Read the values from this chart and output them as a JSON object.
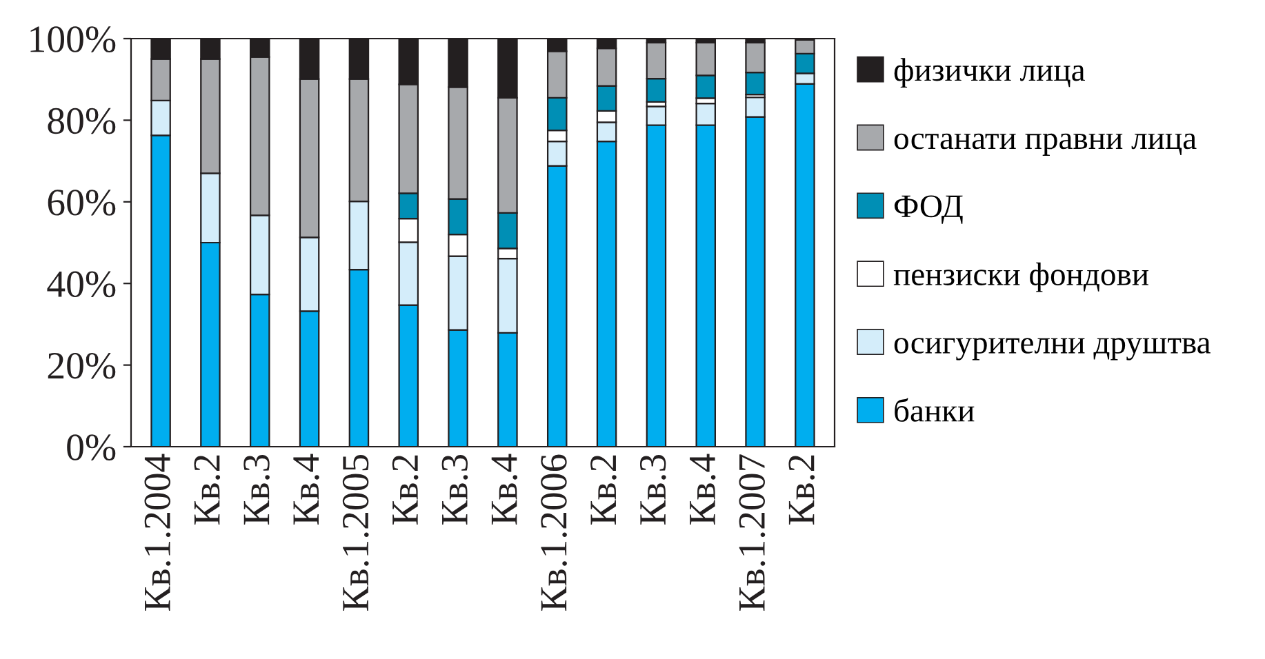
{
  "chart_data": {
    "type": "bar",
    "stacked": true,
    "categories": [
      "Кв.1.2004",
      "Кв.2",
      "Кв.3",
      "Кв.4",
      "Кв.1.2005",
      "Кв.2",
      "Кв.3",
      "Кв.4",
      "Кв.1.2006",
      "Кв.2",
      "Кв.3",
      "Кв.4",
      "Кв.1.2007",
      "Кв.2"
    ],
    "series": [
      {
        "name": "банки",
        "color": "#00aeef",
        "values": [
          76.3,
          50,
          37.3,
          33.2,
          43.4,
          34.7,
          28.6,
          27.9,
          68.8,
          74.8,
          78.8,
          78.8,
          80.8,
          88.9
        ]
      },
      {
        "name": "осигурителни друштва",
        "color": "#d4edfa",
        "values": [
          8.5,
          17,
          19.4,
          18.1,
          16.7,
          15.4,
          18.1,
          18.2,
          6,
          4.7,
          4.6,
          5.3,
          4.8,
          2.6
        ]
      },
      {
        "name": "пензиски фондови",
        "color": "#ffffff",
        "values": [
          0,
          0,
          0,
          0,
          0,
          5.8,
          5.3,
          2.5,
          2.7,
          2.8,
          1.1,
          1.3,
          0.7,
          0
        ]
      },
      {
        "name": "ФОД",
        "color": "#008fb5",
        "values": [
          0,
          0,
          0,
          0,
          0,
          6.2,
          8.7,
          8.7,
          8,
          6.1,
          5.7,
          5.6,
          5.4,
          4.8
        ]
      },
      {
        "name": "останати правни лица",
        "color": "#a7a9ac",
        "values": [
          10.2,
          28,
          38.8,
          38.8,
          30,
          26.7,
          27.4,
          28.2,
          11.4,
          9.2,
          8.8,
          8,
          7.3,
          3.4
        ]
      },
      {
        "name": "физички лица",
        "color": "#231f20",
        "values": [
          5,
          5,
          4.5,
          9.9,
          9.9,
          11.2,
          11.9,
          14.5,
          3.1,
          2.4,
          1,
          1,
          1,
          null
        ]
      }
    ],
    "ylim": [
      0,
      100
    ],
    "yticks": [
      {
        "value": 0,
        "label": "0%"
      },
      {
        "value": 20,
        "label": "20%"
      },
      {
        "value": 40,
        "label": "40%"
      },
      {
        "value": 60,
        "label": "60%"
      },
      {
        "value": 80,
        "label": "80%"
      },
      {
        "value": 100,
        "label": "100%"
      }
    ],
    "legend": "right"
  }
}
